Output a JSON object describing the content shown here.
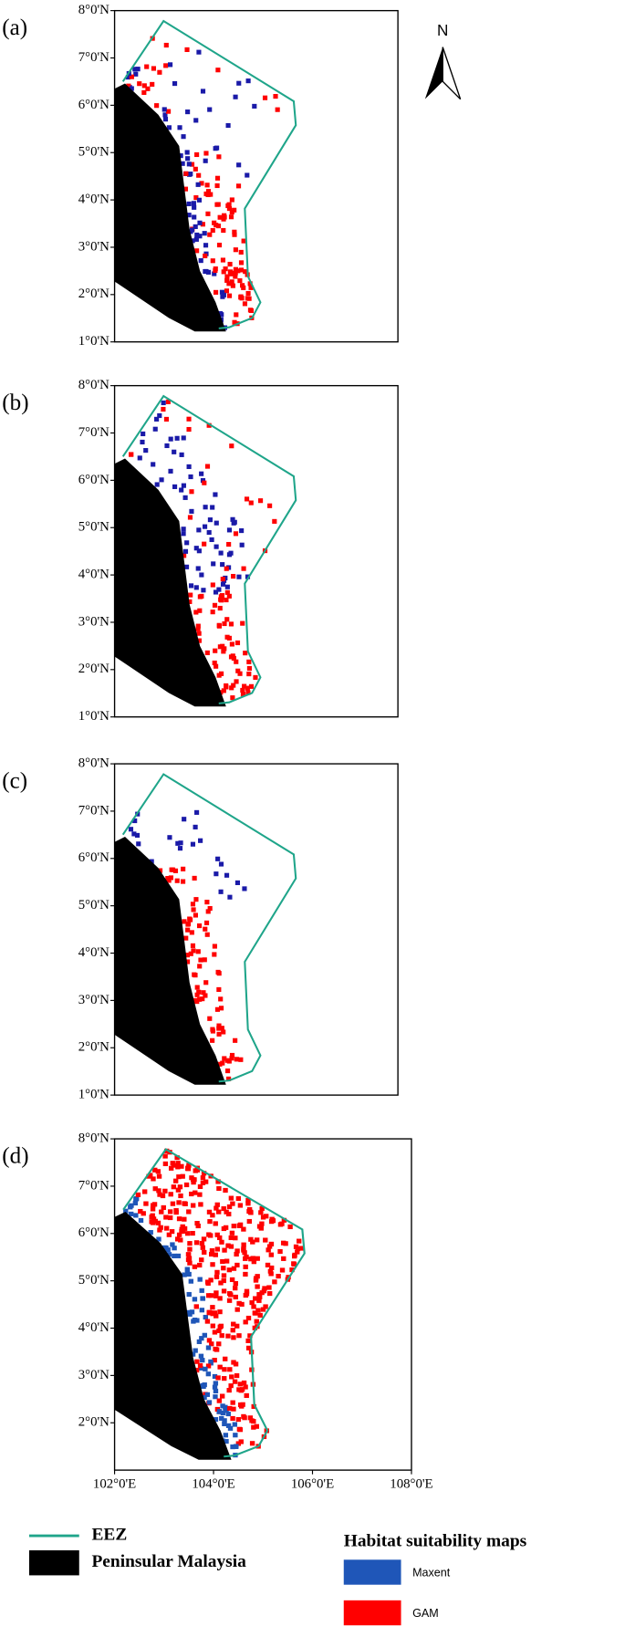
{
  "panels": [
    {
      "label": "(a)",
      "lat_labels": [
        "8°0'N",
        "7°0'N",
        "6°0'N",
        "5°0'N",
        "4°0'N",
        "3°0'N",
        "2°0'N",
        "1°0'N"
      ]
    },
    {
      "label": "(b)",
      "lat_labels": [
        "8°0'N",
        "7°0'N",
        "6°0'N",
        "5°0'N",
        "4°0'N",
        "3°0'N",
        "2°0'N",
        "1°0'N"
      ]
    },
    {
      "label": "(c)",
      "lat_labels": [
        "8°0'N",
        "7°0'N",
        "6°0'N",
        "5°0'N",
        "4°0'N",
        "3°0'N",
        "2°0'N",
        "1°0'N"
      ]
    },
    {
      "label": "(d)",
      "lat_labels": [
        "8°0'N",
        "7°0'N",
        "6°0'N",
        "5°0'N",
        "4°0'N",
        "3°0'N",
        "2°0'N"
      ]
    }
  ],
  "lon_labels": [
    "102°0'E",
    "104°0'E",
    "106°0'E",
    "108°0'E"
  ],
  "north": "N",
  "legend": {
    "eez": "EEZ",
    "land": "Peninsular Malaysia",
    "title": "Habitat suitability maps",
    "maxent": "Maxent",
    "gam": "GAM"
  }
}
